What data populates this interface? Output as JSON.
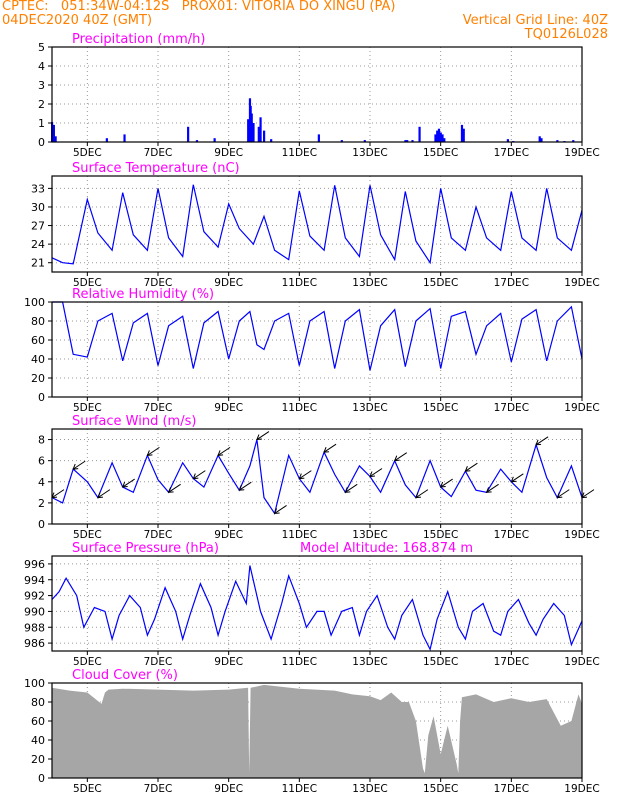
{
  "header": {
    "left_line1": "CPTEC:   051:34W-04:12S   PROX01: VITORIA DO XINGU (PA)",
    "left_line2": "04DEC2020 40Z (GMT)",
    "right_line2": "Vertical Grid Line: 40Z",
    "right_line3": "TQ0126L028"
  },
  "colors": {
    "header": "#ff8000",
    "title": "#ff00ff",
    "data": "#0000ff",
    "cloud": "#a6a6a6"
  },
  "x_axis": {
    "range_days": [
      4.0,
      19.0
    ],
    "tick_labels": [
      "5DEC",
      "7DEC",
      "9DEC",
      "11DEC",
      "13DEC",
      "15DEC",
      "17DEC",
      "19DEC"
    ],
    "tick_positions_days": [
      5,
      7,
      9,
      11,
      13,
      15,
      17,
      19
    ]
  },
  "chart_data": [
    {
      "type": "bar",
      "title": "Precipitation (mm/h)",
      "ylim": [
        0,
        5
      ],
      "yticks": [
        0,
        1,
        2,
        3,
        4,
        5
      ],
      "x_days": [
        4.0,
        4.05,
        4.1,
        5.55,
        6.05,
        7.85,
        8.1,
        8.6,
        9.55,
        9.6,
        9.62,
        9.65,
        9.7,
        9.85,
        9.9,
        10.0,
        10.2,
        11.55,
        12.2,
        12.85,
        14.0,
        14.05,
        14.2,
        14.4,
        14.85,
        14.9,
        14.95,
        15.0,
        15.05,
        15.1,
        15.6,
        15.65,
        16.9,
        17.05,
        17.8,
        17.85,
        18.3,
        18.5,
        18.75
      ],
      "values": [
        1.05,
        0.9,
        0.3,
        0.2,
        0.4,
        0.8,
        0.1,
        0.2,
        1.2,
        2.3,
        1.9,
        1.5,
        1.0,
        0.8,
        1.3,
        0.6,
        0.15,
        0.4,
        0.1,
        0.1,
        0.1,
        0.1,
        0.1,
        0.8,
        0.4,
        0.6,
        0.7,
        0.5,
        0.4,
        0.2,
        0.9,
        0.7,
        0.15,
        0.05,
        0.3,
        0.2,
        0.1,
        0.05,
        0.1
      ]
    },
    {
      "type": "line",
      "title": "Surface Temperature (nC)",
      "ylim": [
        19.5,
        35.0
      ],
      "yticks": [
        21,
        24,
        27,
        30,
        33
      ],
      "x_days": [
        4.0,
        4.3,
        4.6,
        5.0,
        5.3,
        5.7,
        6.0,
        6.3,
        6.7,
        7.0,
        7.3,
        7.7,
        8.0,
        8.3,
        8.7,
        9.0,
        9.3,
        9.7,
        10.0,
        10.3,
        10.7,
        11.0,
        11.3,
        11.7,
        12.0,
        12.3,
        12.7,
        13.0,
        13.3,
        13.7,
        14.0,
        14.3,
        14.7,
        15.0,
        15.3,
        15.7,
        16.0,
        16.3,
        16.7,
        17.0,
        17.3,
        17.7,
        18.0,
        18.3,
        18.7,
        19.0
      ],
      "values": [
        21.8,
        21.0,
        20.8,
        31.2,
        25.8,
        23.0,
        32.3,
        25.5,
        23.0,
        33.0,
        25.0,
        22.0,
        33.6,
        26.0,
        23.5,
        30.5,
        26.5,
        24.0,
        28.5,
        23.0,
        21.5,
        32.6,
        25.3,
        23.0,
        33.5,
        25.0,
        22.0,
        33.5,
        25.5,
        21.5,
        32.5,
        24.5,
        21.0,
        33.0,
        25.0,
        23.0,
        30.0,
        25.0,
        23.0,
        32.5,
        25.0,
        23.0,
        33.0,
        25.0,
        23.0,
        29.5
      ]
    },
    {
      "type": "line",
      "title": "Relative Humidity (%)",
      "ylim": [
        0,
        100
      ],
      "yticks": [
        0,
        20,
        40,
        60,
        80,
        100
      ],
      "x_days": [
        4.0,
        4.3,
        4.6,
        5.0,
        5.3,
        5.7,
        6.0,
        6.3,
        6.7,
        7.0,
        7.3,
        7.7,
        8.0,
        8.3,
        8.7,
        9.0,
        9.3,
        9.6,
        9.8,
        10.0,
        10.3,
        10.7,
        11.0,
        11.3,
        11.7,
        12.0,
        12.3,
        12.7,
        13.0,
        13.3,
        13.7,
        14.0,
        14.3,
        14.7,
        15.0,
        15.3,
        15.7,
        16.0,
        16.3,
        16.7,
        17.0,
        17.3,
        17.7,
        18.0,
        18.3,
        18.7,
        19.0
      ],
      "values": [
        100,
        100,
        45,
        42,
        80,
        88,
        38,
        78,
        88,
        33,
        75,
        85,
        30,
        78,
        90,
        40,
        80,
        90,
        55,
        50,
        80,
        88,
        33,
        80,
        90,
        30,
        80,
        92,
        28,
        75,
        92,
        32,
        80,
        93,
        30,
        85,
        90,
        45,
        75,
        88,
        37,
        82,
        92,
        38,
        80,
        95,
        40
      ]
    },
    {
      "type": "line",
      "title": "Surface Wind (m/s)",
      "ylim": [
        0,
        9
      ],
      "yticks": [
        0,
        2,
        4,
        6,
        8
      ],
      "x_days": [
        4.0,
        4.3,
        4.6,
        5.0,
        5.3,
        5.7,
        6.0,
        6.3,
        6.7,
        7.0,
        7.3,
        7.7,
        8.0,
        8.3,
        8.7,
        9.0,
        9.3,
        9.6,
        9.8,
        10.0,
        10.3,
        10.7,
        11.0,
        11.3,
        11.7,
        12.0,
        12.3,
        12.7,
        13.0,
        13.3,
        13.7,
        14.0,
        14.3,
        14.7,
        15.0,
        15.3,
        15.7,
        16.0,
        16.3,
        16.7,
        17.0,
        17.3,
        17.7,
        18.0,
        18.3,
        18.7,
        19.0
      ],
      "values": [
        2.5,
        2.0,
        5.2,
        4.0,
        2.5,
        5.8,
        3.5,
        3.0,
        6.5,
        4.2,
        3.0,
        5.8,
        4.3,
        3.5,
        6.5,
        4.8,
        3.2,
        5.5,
        8.0,
        2.5,
        1.0,
        6.5,
        4.3,
        3.0,
        6.8,
        4.7,
        3.0,
        5.5,
        4.5,
        3.0,
        6.0,
        3.7,
        2.5,
        6.0,
        3.5,
        2.6,
        5.0,
        3.2,
        3.0,
        5.2,
        4.0,
        3.0,
        7.5,
        4.4,
        2.5,
        5.5,
        2.5
      ],
      "arrows": "barb arrows pointing toward the southwest"
    },
    {
      "type": "line",
      "title": "Surface Pressure (hPa)",
      "subtitle": "Model Altitude: 168.874 m",
      "ylim": [
        985.0,
        997.0
      ],
      "yticks": [
        986,
        988,
        990,
        992,
        994,
        996
      ],
      "x_days": [
        4.0,
        4.2,
        4.4,
        4.7,
        4.9,
        5.2,
        5.5,
        5.7,
        5.9,
        6.2,
        6.5,
        6.7,
        6.9,
        7.2,
        7.5,
        7.7,
        7.9,
        8.2,
        8.5,
        8.7,
        8.9,
        9.2,
        9.5,
        9.6,
        9.9,
        10.2,
        10.5,
        10.7,
        11.0,
        11.2,
        11.5,
        11.7,
        11.9,
        12.2,
        12.5,
        12.7,
        12.9,
        13.2,
        13.5,
        13.7,
        13.9,
        14.2,
        14.5,
        14.7,
        14.9,
        15.2,
        15.5,
        15.7,
        15.9,
        16.2,
        16.5,
        16.7,
        16.9,
        17.2,
        17.5,
        17.7,
        17.9,
        18.2,
        18.5,
        18.7,
        19.0
      ],
      "values": [
        991.5,
        992.5,
        994.2,
        992.0,
        988.0,
        990.5,
        990.0,
        986.5,
        989.5,
        992.0,
        990.5,
        987.0,
        989.0,
        993.0,
        990.0,
        986.5,
        989.5,
        993.5,
        990.5,
        987.0,
        990.0,
        993.8,
        991.0,
        995.8,
        990.0,
        986.5,
        991.0,
        994.5,
        991.0,
        988.0,
        990.0,
        990.0,
        987.0,
        990.0,
        990.5,
        987.0,
        990.0,
        992.0,
        988.0,
        986.5,
        989.5,
        991.5,
        987.0,
        985.2,
        989.0,
        992.5,
        988.0,
        986.5,
        990.0,
        991.0,
        987.5,
        987.0,
        990.0,
        991.5,
        988.5,
        987.0,
        989.0,
        991.0,
        989.5,
        985.8,
        988.8
      ]
    },
    {
      "type": "area",
      "title": "Cloud Cover (%)",
      "ylim": [
        0,
        100
      ],
      "yticks": [
        0,
        20,
        40,
        60,
        80,
        100
      ],
      "x_days": [
        4.0,
        4.5,
        5.0,
        5.4,
        5.5,
        5.6,
        6.0,
        7.0,
        8.0,
        9.0,
        9.55,
        9.58,
        9.62,
        10.0,
        11.0,
        12.0,
        12.5,
        13.0,
        13.3,
        13.6,
        13.9,
        14.1,
        14.3,
        14.5,
        14.55,
        14.65,
        14.8,
        15.0,
        15.2,
        15.45,
        15.5,
        15.55,
        15.6,
        16.0,
        16.5,
        17.0,
        17.5,
        18.0,
        18.4,
        18.7,
        18.9,
        19.0
      ],
      "values": [
        95,
        92,
        90,
        78,
        90,
        93,
        94,
        93,
        92,
        93,
        95,
        5,
        95,
        98,
        94,
        92,
        88,
        86,
        82,
        90,
        80,
        80,
        60,
        10,
        5,
        45,
        65,
        25,
        55,
        15,
        5,
        60,
        85,
        88,
        80,
        84,
        80,
        83,
        55,
        60,
        88,
        78
      ]
    }
  ]
}
